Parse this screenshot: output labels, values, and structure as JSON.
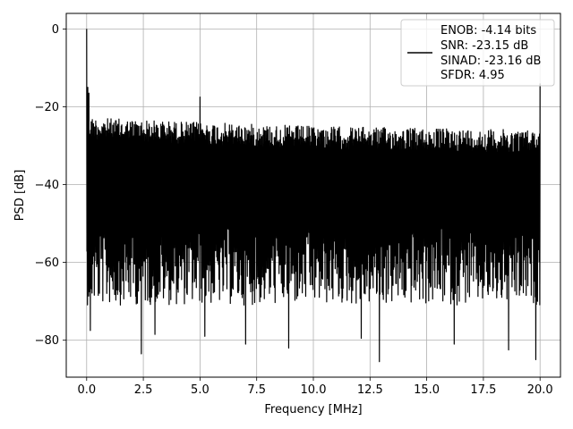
{
  "chart_data": {
    "type": "line",
    "xlabel": "Frequency [MHz]",
    "ylabel": "PSD [dB]",
    "xlim": [
      -0.9,
      20.9
    ],
    "ylim": [
      -89.5,
      4
    ],
    "x_ticks": [
      0.0,
      2.5,
      5.0,
      7.5,
      10.0,
      12.5,
      15.0,
      17.5,
      20.0
    ],
    "x_tick_labels": [
      "0.0",
      "2.5",
      "5.0",
      "7.5",
      "10.0",
      "12.5",
      "15.0",
      "17.5",
      "20.0"
    ],
    "y_ticks": [
      0,
      -20,
      -40,
      -60,
      -80
    ],
    "y_tick_labels": [
      "0",
      "−20",
      "−40",
      "−60",
      "−80"
    ],
    "grid": true,
    "legend_position": "top-right",
    "series": [
      {
        "name": "ENOB: -4.14 bits\nSNR: -23.15 dB\nSINAD: -23.16 dB\nSFDR: 4.95",
        "legend_lines": [
          "ENOB: -4.14 bits",
          "SNR: -23.15 dB",
          "SINAD: -23.16 dB",
          "SFDR: 4.95"
        ],
        "color": "#000000",
        "x_range": [
          0.0,
          20.0
        ],
        "upper_envelope": [
          [
            0.0,
            -22.5
          ],
          [
            1.0,
            -23.0
          ],
          [
            5.0,
            -24.0
          ],
          [
            10.0,
            -25.0
          ],
          [
            15.0,
            -25.5
          ],
          [
            20.0,
            -26.0
          ]
        ],
        "typical_lower_floor_db": -63,
        "spikes": [
          {
            "x": 0.0,
            "y": 0.0
          },
          {
            "x": 0.05,
            "y": -15.0
          },
          {
            "x": 0.1,
            "y": -16.5
          },
          {
            "x": 5.0,
            "y": -17.5
          },
          {
            "x": 20.0,
            "y": -14.0
          }
        ],
        "deep_nulls": [
          {
            "x": 0.15,
            "y": -77.5
          },
          {
            "x": 2.4,
            "y": -83.5
          },
          {
            "x": 3.0,
            "y": -78.5
          },
          {
            "x": 5.2,
            "y": -79.0
          },
          {
            "x": 7.0,
            "y": -81.0
          },
          {
            "x": 8.9,
            "y": -82.0
          },
          {
            "x": 12.1,
            "y": -79.5
          },
          {
            "x": 12.9,
            "y": -85.5
          },
          {
            "x": 16.2,
            "y": -81.0
          },
          {
            "x": 18.6,
            "y": -82.5
          },
          {
            "x": 19.8,
            "y": -85.0
          }
        ]
      }
    ]
  }
}
